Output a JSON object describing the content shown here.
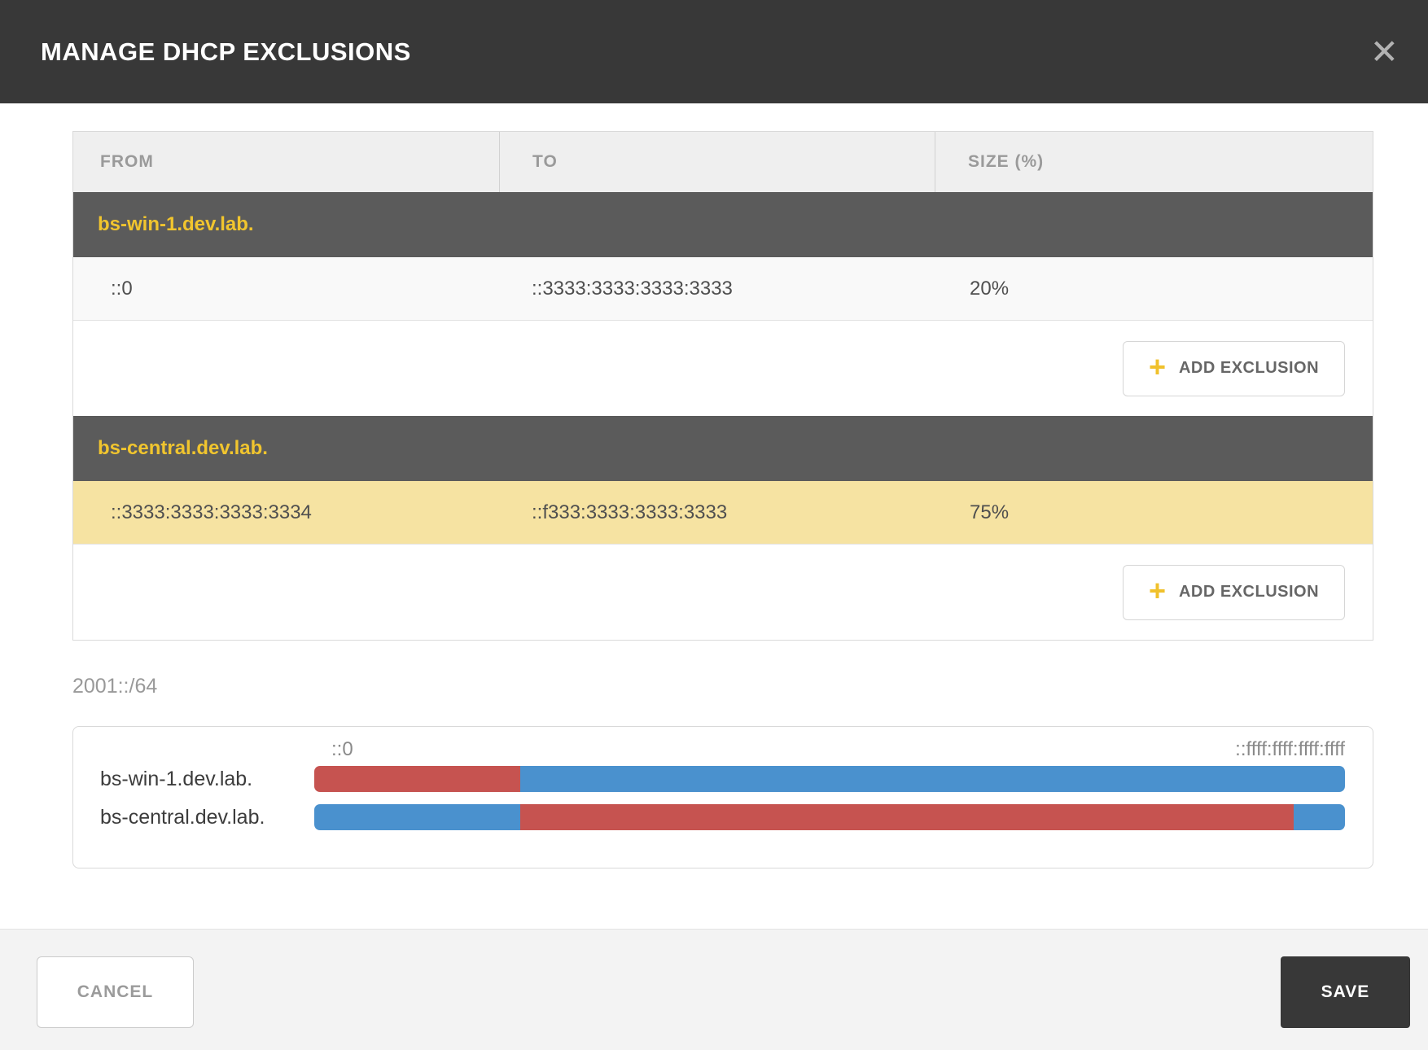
{
  "dialog": {
    "title": "MANAGE DHCP EXCLUSIONS",
    "close_glyph": "✕"
  },
  "table": {
    "columns": [
      "FROM",
      "TO",
      "SIZE (%)"
    ],
    "groups": [
      {
        "server": "bs-win-1.dev.lab.",
        "rows": [
          {
            "from": "::0",
            "to": "::3333:3333:3333:3333",
            "size": "20%",
            "highlighted": false
          }
        ],
        "add_label": "ADD EXCLUSION",
        "plus_glyph": "+"
      },
      {
        "server": "bs-central.dev.lab.",
        "rows": [
          {
            "from": "::3333:3333:3333:3334",
            "to": "::f333:3333:3333:3333",
            "size": "75%",
            "highlighted": true
          }
        ],
        "add_label": "ADD EXCLUSION",
        "plus_glyph": "+"
      }
    ]
  },
  "chart": {
    "subnet": "2001::/64",
    "range_start": "::0",
    "range_end": "::ffff:ffff:ffff:ffff",
    "rows": [
      {
        "label": "bs-win-1.dev.lab.",
        "segments": [
          {
            "color": "bar_red",
            "pct": 20
          },
          {
            "color": "bar_blue",
            "pct": 80
          }
        ]
      },
      {
        "label": "bs-central.dev.lab.",
        "segments": [
          {
            "color": "bar_blue",
            "pct": 20
          },
          {
            "color": "bar_red",
            "pct": 75
          },
          {
            "color": "bar_blue",
            "pct": 5
          }
        ]
      }
    ]
  },
  "footer": {
    "cancel_label": "CANCEL",
    "save_label": "SAVE"
  },
  "colors": {
    "bar_red": "#c65350",
    "bar_blue": "#4a91ce",
    "accent_yellow": "#f1c52e",
    "header_dark": "#383838",
    "section_gray": "#5b5b5b",
    "row_highlight": "#f6e3a2"
  }
}
